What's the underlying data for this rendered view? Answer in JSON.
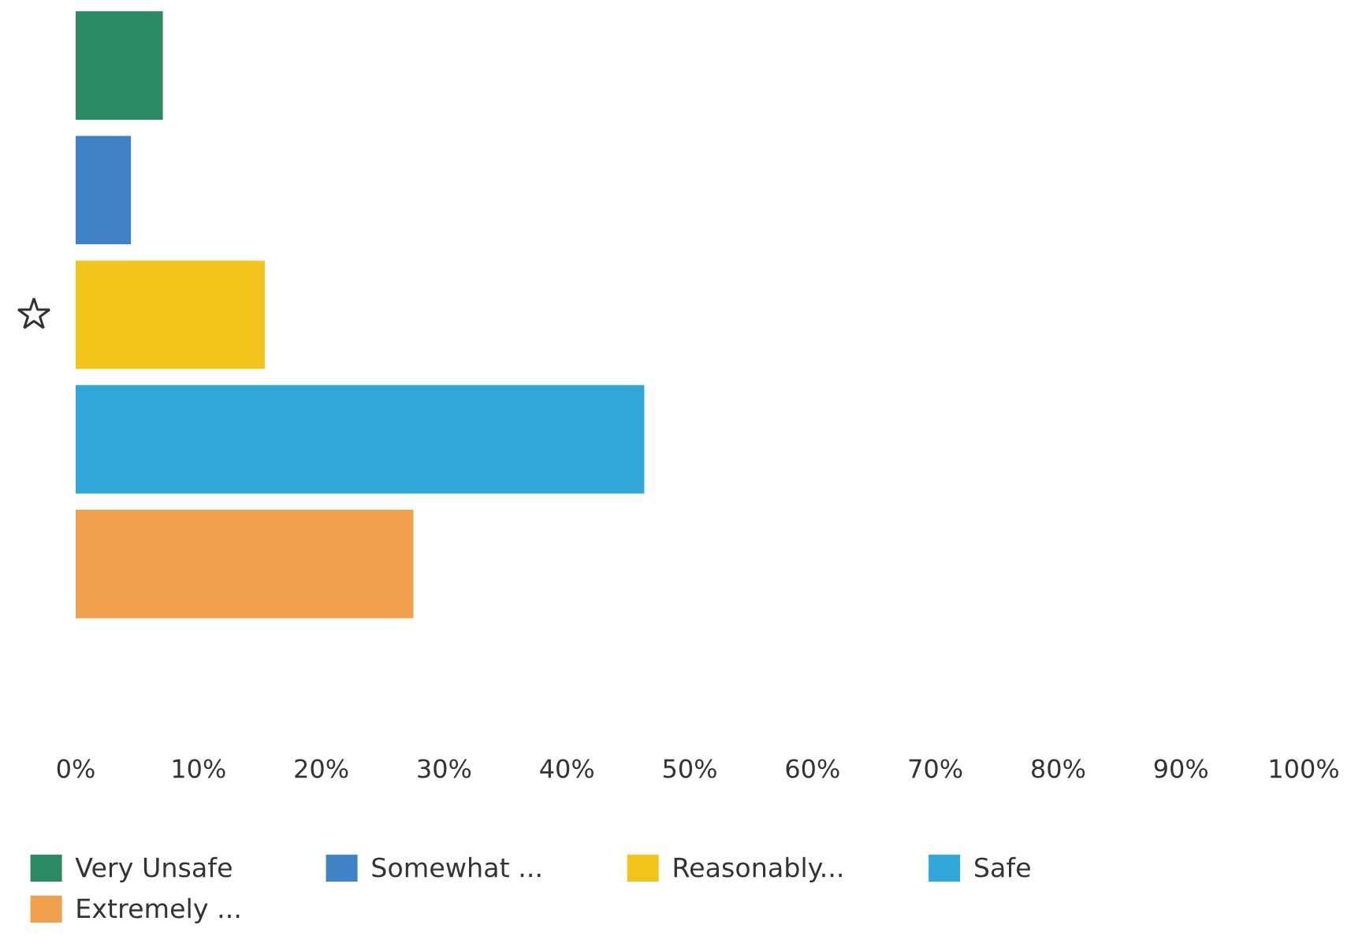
{
  "chart_data": {
    "type": "bar",
    "orientation": "horizontal",
    "categories": [
      null,
      null,
      null,
      null,
      null
    ],
    "series": [
      {
        "name": "Very Unsafe",
        "color": "#2a8a63",
        "values": [
          7.1,
          null,
          null,
          null,
          null
        ]
      },
      {
        "name": "Somewhat ...",
        "color": "#3f82c8",
        "values": [
          null,
          4.5,
          null,
          null,
          null
        ]
      },
      {
        "name": "Reasonably...",
        "color": "#f2c41c",
        "values": [
          null,
          null,
          15.4,
          null,
          null
        ]
      },
      {
        "name": "Safe",
        "color": "#2fa7d8",
        "values": [
          null,
          null,
          null,
          46.3,
          null
        ]
      },
      {
        "name": "Extremely ...",
        "color": "#f0a04b",
        "values": [
          null,
          null,
          null,
          null,
          27.5
        ]
      }
    ],
    "xlim": [
      0,
      100
    ],
    "xticks": [
      {
        "value": 0,
        "label": "0%"
      },
      {
        "value": 10,
        "label": "10%"
      },
      {
        "value": 20,
        "label": "20%"
      },
      {
        "value": 30,
        "label": "30%"
      },
      {
        "value": 40,
        "label": "40%"
      },
      {
        "value": 50,
        "label": "50%"
      },
      {
        "value": 60,
        "label": "60%"
      },
      {
        "value": 70,
        "label": "70%"
      },
      {
        "value": 80,
        "label": "80%"
      },
      {
        "value": 90,
        "label": "90%"
      },
      {
        "value": 100,
        "label": "100%"
      }
    ],
    "stacked": true,
    "grid": false,
    "legend": "bottom"
  }
}
